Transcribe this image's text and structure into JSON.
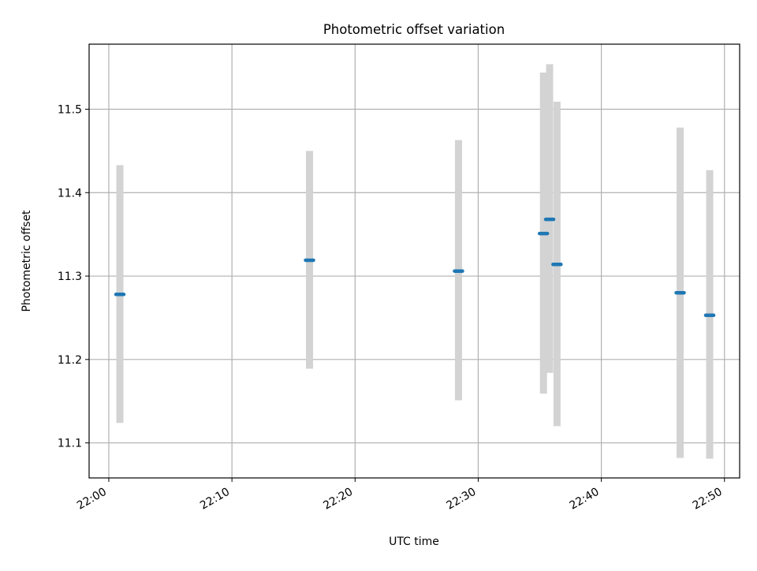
{
  "chart_data": {
    "type": "scatter",
    "title": "Photometric offset variation",
    "xlabel": "UTC time",
    "ylabel": "Photometric offset",
    "x_ticks": [
      "22:00",
      "22:10",
      "22:20",
      "22:30",
      "22:40",
      "22:50"
    ],
    "y_ticks": [
      11.1,
      11.2,
      11.3,
      11.4,
      11.5
    ],
    "xlim": [
      "21:58:24",
      "22:51:14"
    ],
    "ylim": [
      11.058,
      11.578
    ],
    "grid": true,
    "colors": {
      "point": "#1f77b4",
      "errorbar": "#d3d3d3",
      "grid": "#b0b0b0"
    },
    "points": [
      {
        "time": "22:00:54",
        "value": 11.278,
        "low": 11.124,
        "high": 11.433
      },
      {
        "time": "22:16:18",
        "value": 11.319,
        "low": 11.189,
        "high": 11.45
      },
      {
        "time": "22:28:24",
        "value": 11.306,
        "low": 11.151,
        "high": 11.463
      },
      {
        "time": "22:35:18",
        "value": 11.351,
        "low": 11.159,
        "high": 11.544
      },
      {
        "time": "22:35:48",
        "value": 11.368,
        "low": 11.184,
        "high": 11.554
      },
      {
        "time": "22:36:24",
        "value": 11.314,
        "low": 11.12,
        "high": 11.509
      },
      {
        "time": "22:46:24",
        "value": 11.28,
        "low": 11.082,
        "high": 11.478
      },
      {
        "time": "22:48:48",
        "value": 11.253,
        "low": 11.081,
        "high": 11.427
      }
    ]
  }
}
